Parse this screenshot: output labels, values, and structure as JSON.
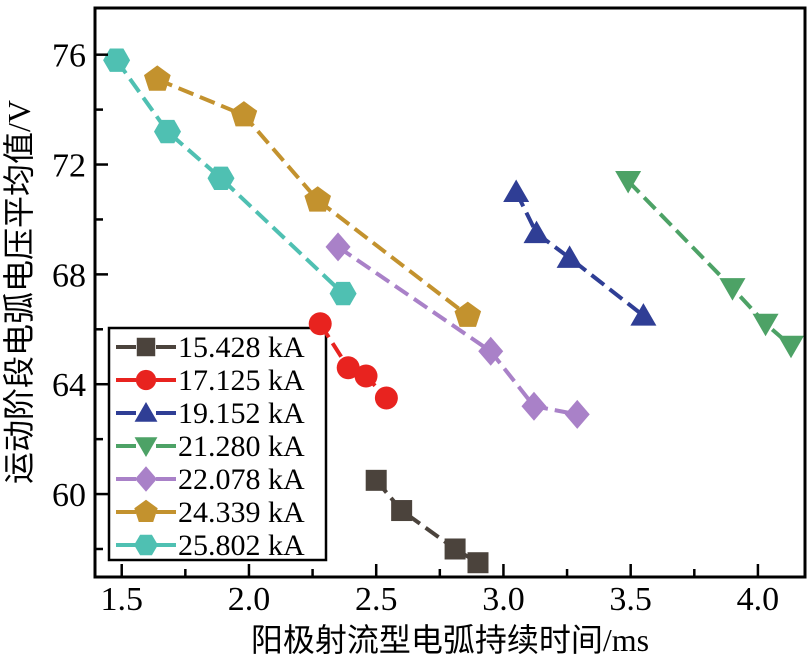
{
  "figure": {
    "background": "#ffffff",
    "axis_color": "#000000"
  },
  "chart_data": {
    "type": "line",
    "title": "",
    "xlabel": "阳极射流型电弧持续时间/ms",
    "ylabel": "运动阶段电弧电压平均值/V",
    "xlim": [
      1.395,
      4.185
    ],
    "ylim": [
      56.98,
      77.7
    ],
    "grid": false,
    "x_ticks": {
      "major": [
        1.5,
        2.0,
        2.5,
        3.0,
        3.5,
        4.0
      ],
      "minor": [
        1.75,
        2.25,
        2.75,
        3.25,
        3.75
      ],
      "labels": [
        "1.5",
        "2.0",
        "2.5",
        "3.0",
        "3.5",
        "4.0"
      ]
    },
    "y_ticks": {
      "major": [
        60,
        64,
        68,
        72,
        76
      ],
      "minor": [
        58,
        62,
        66,
        70,
        74
      ],
      "labels": [
        "60",
        "64",
        "68",
        "72",
        "76"
      ]
    },
    "legend": {
      "position": "lower-left",
      "border_color": "#000000",
      "background": "#ffffff"
    },
    "series": [
      {
        "name": "15.428 kA",
        "marker": "square",
        "color": "#4b433c",
        "line_style": "dashed",
        "points": [
          [
            2.5,
            60.5
          ],
          [
            2.6,
            59.4
          ],
          [
            2.81,
            58.0
          ],
          [
            2.9,
            57.5
          ]
        ]
      },
      {
        "name": "17.125 kA",
        "marker": "circle",
        "color": "#e8231f",
        "line_style": "dashed",
        "points": [
          [
            2.28,
            66.2
          ],
          [
            2.39,
            64.6
          ],
          [
            2.46,
            64.3
          ],
          [
            2.54,
            63.5
          ]
        ]
      },
      {
        "name": "19.152 kA",
        "marker": "triangle-up",
        "color": "#2f3e95",
        "line_style": "dashed",
        "points": [
          [
            3.05,
            71.0
          ],
          [
            3.13,
            69.5
          ],
          [
            3.26,
            68.6
          ],
          [
            3.55,
            66.5
          ]
        ]
      },
      {
        "name": "21.280 kA",
        "marker": "triangle-down",
        "color": "#4da266",
        "line_style": "dashed",
        "points": [
          [
            3.49,
            71.4
          ],
          [
            3.9,
            67.5
          ],
          [
            4.03,
            66.2
          ],
          [
            4.13,
            65.4
          ]
        ]
      },
      {
        "name": "22.078 kA",
        "marker": "diamond",
        "color": "#a981c8",
        "line_style": "dashed",
        "points": [
          [
            2.35,
            69.0
          ],
          [
            2.95,
            65.2
          ],
          [
            3.12,
            63.2
          ],
          [
            3.29,
            62.9
          ]
        ]
      },
      {
        "name": "24.339 kA",
        "marker": "pentagon",
        "color": "#c3922e",
        "line_style": "dashed",
        "points": [
          [
            1.64,
            75.1
          ],
          [
            1.98,
            73.8
          ],
          [
            2.27,
            70.7
          ],
          [
            2.86,
            66.5
          ]
        ]
      },
      {
        "name": "25.802 kA",
        "marker": "hexagon",
        "color": "#4fc0b2",
        "line_style": "dashed",
        "points": [
          [
            1.48,
            75.8
          ],
          [
            1.68,
            73.2
          ],
          [
            1.89,
            71.5
          ],
          [
            2.37,
            67.3
          ]
        ]
      }
    ]
  }
}
